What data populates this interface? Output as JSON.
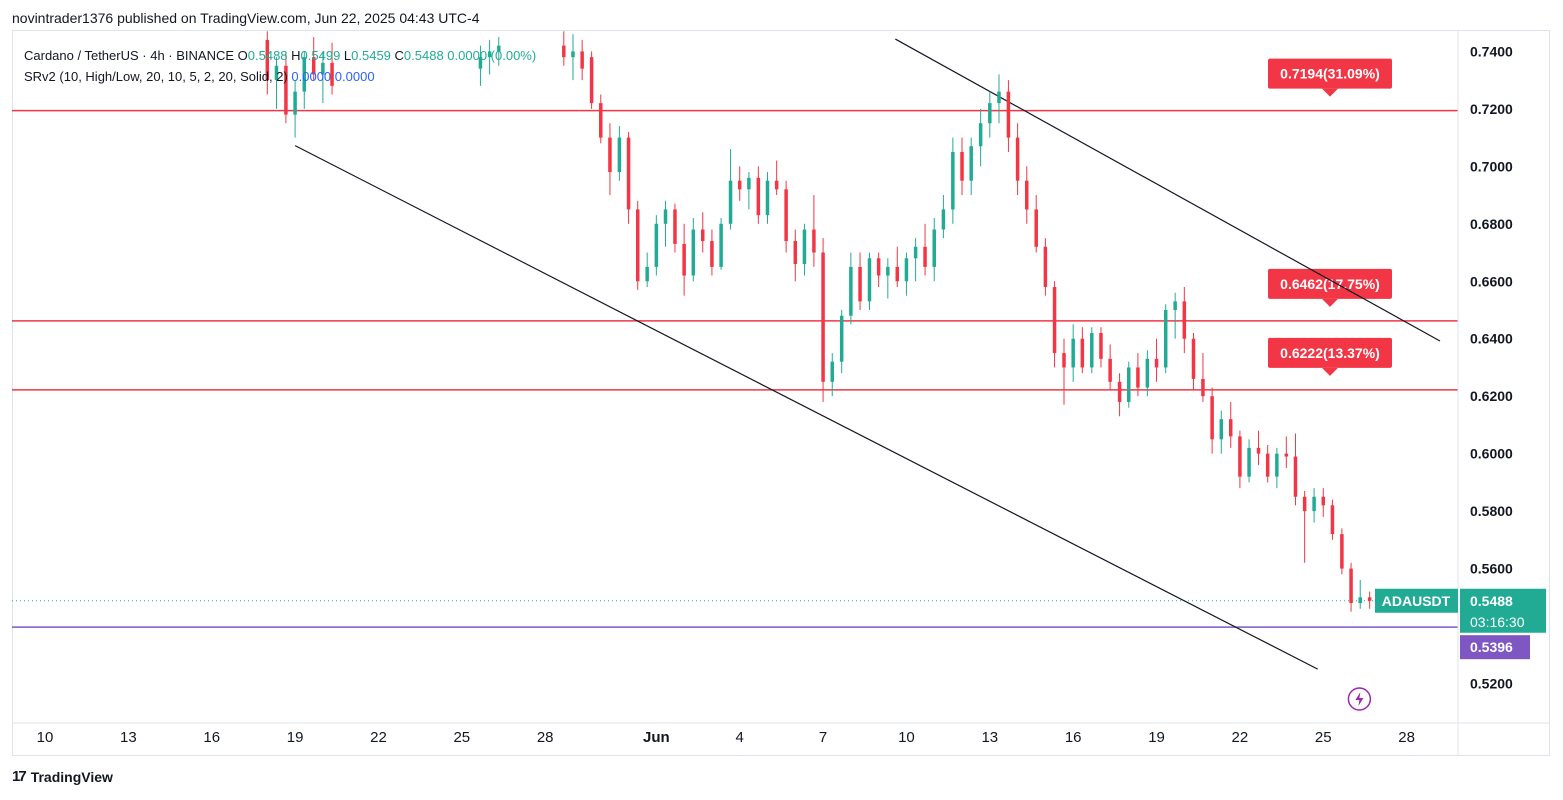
{
  "publisher_line": "novintrader1376 published on TradingView.com, Jun 22, 2025 04:43 UTC-4",
  "legend": {
    "symbol": "Cardano / TetherUS · 4h · BINANCE",
    "ohlc": [
      {
        "k": "O",
        "v": "0.5488"
      },
      {
        "k": "H",
        "v": "0.5499"
      },
      {
        "k": "L",
        "v": "0.5459"
      },
      {
        "k": "C",
        "v": "0.5488"
      }
    ],
    "change": "0.0000 (0.00%)",
    "indicator": "SRv2 (10, High/Low, 20, 10, 5, 2, 20, Solid, 2)",
    "indicator_values": [
      "0.0000",
      "0.0000"
    ]
  },
  "footer": {
    "brand": "TradingView",
    "logo_icon": "tradingview-logo-icon"
  },
  "colors": {
    "up": "#22ab94",
    "down": "#f23645",
    "sr_line": "#f23645",
    "support": "#7e57c2",
    "price_tag": "#22ab94",
    "trend": "#131722"
  },
  "chart_data": {
    "type": "candlestick",
    "symbol": "ADAUSDT",
    "interval": "4h",
    "ylim": [
      0.5066,
      0.7471
    ],
    "x_day_range": [
      0,
      52
    ],
    "y_ticks": [
      "0.7400",
      "0.7200",
      "0.7000",
      "0.6800",
      "0.6600",
      "0.6400",
      "0.6200",
      "0.6000",
      "0.5800",
      "0.5600",
      "0.5200"
    ],
    "x_ticks": [
      {
        "label": "10",
        "day": 0
      },
      {
        "label": "13",
        "day": 3
      },
      {
        "label": "16",
        "day": 6
      },
      {
        "label": "19",
        "day": 9
      },
      {
        "label": "22",
        "day": 12
      },
      {
        "label": "25",
        "day": 15
      },
      {
        "label": "28",
        "day": 18
      },
      {
        "label": "Jun",
        "day": 22
      },
      {
        "label": "4",
        "day": 25
      },
      {
        "label": "7",
        "day": 28
      },
      {
        "label": "10",
        "day": 31
      },
      {
        "label": "13",
        "day": 34
      },
      {
        "label": "16",
        "day": 37
      },
      {
        "label": "19",
        "day": 40
      },
      {
        "label": "22",
        "day": 43
      },
      {
        "label": "25",
        "day": 46
      },
      {
        "label": "28",
        "day": 49
      }
    ],
    "sr_levels": [
      {
        "price": 0.7194,
        "label": "0.7194(31.09%)"
      },
      {
        "price": 0.6462,
        "label": "0.6462(17.75%)"
      },
      {
        "price": 0.6222,
        "label": "0.6222(13.37%)"
      }
    ],
    "support_line": {
      "price": 0.5396,
      "label": "0.5396"
    },
    "last_price": {
      "price": 0.5488,
      "symbol": "ADAUSDT",
      "value": "0.5488",
      "countdown": "03:16:30"
    },
    "trendlines": [
      {
        "from": {
          "day": 30.6,
          "price": 0.7443
        },
        "to": {
          "day": 50.2,
          "price": 0.6392
        }
      },
      {
        "from": {
          "day": 9.0,
          "price": 0.7072
        },
        "to": {
          "day": 45.8,
          "price": 0.525
        }
      }
    ],
    "candles": [
      {
        "day": 8.0,
        "o": 0.744,
        "h": 0.747,
        "l": 0.725,
        "c": 0.73
      },
      {
        "day": 8.33,
        "o": 0.73,
        "h": 0.738,
        "l": 0.72,
        "c": 0.735
      },
      {
        "day": 8.67,
        "o": 0.735,
        "h": 0.74,
        "l": 0.715,
        "c": 0.718
      },
      {
        "day": 9.0,
        "o": 0.718,
        "h": 0.73,
        "l": 0.71,
        "c": 0.726
      },
      {
        "day": 9.33,
        "o": 0.726,
        "h": 0.74,
        "l": 0.72,
        "c": 0.738
      },
      {
        "day": 9.67,
        "o": 0.738,
        "h": 0.745,
        "l": 0.73,
        "c": 0.732
      },
      {
        "day": 10.0,
        "o": 0.732,
        "h": 0.74,
        "l": 0.722,
        "c": 0.736
      },
      {
        "day": 10.33,
        "o": 0.736,
        "h": 0.743,
        "l": 0.725,
        "c": 0.728
      },
      {
        "day": 15.67,
        "o": 0.734,
        "h": 0.742,
        "l": 0.728,
        "c": 0.738
      },
      {
        "day": 16.0,
        "o": 0.738,
        "h": 0.744,
        "l": 0.732,
        "c": 0.74
      },
      {
        "day": 16.33,
        "o": 0.74,
        "h": 0.745,
        "l": 0.735,
        "c": 0.742
      },
      {
        "day": 18.67,
        "o": 0.742,
        "h": 0.747,
        "l": 0.735,
        "c": 0.738
      },
      {
        "day": 19.0,
        "o": 0.738,
        "h": 0.746,
        "l": 0.73,
        "c": 0.74
      },
      {
        "day": 19.33,
        "o": 0.74,
        "h": 0.744,
        "l": 0.73,
        "c": 0.734
      },
      {
        "day": 19.67,
        "o": 0.738,
        "h": 0.74,
        "l": 0.72,
        "c": 0.722
      },
      {
        "day": 20.0,
        "o": 0.722,
        "h": 0.725,
        "l": 0.708,
        "c": 0.71
      },
      {
        "day": 20.33,
        "o": 0.71,
        "h": 0.715,
        "l": 0.69,
        "c": 0.698
      },
      {
        "day": 20.67,
        "o": 0.698,
        "h": 0.714,
        "l": 0.695,
        "c": 0.71
      },
      {
        "day": 21.0,
        "o": 0.71,
        "h": 0.712,
        "l": 0.68,
        "c": 0.685
      },
      {
        "day": 21.33,
        "o": 0.685,
        "h": 0.688,
        "l": 0.657,
        "c": 0.66
      },
      {
        "day": 21.67,
        "o": 0.66,
        "h": 0.67,
        "l": 0.658,
        "c": 0.665
      },
      {
        "day": 22.0,
        "o": 0.665,
        "h": 0.683,
        "l": 0.662,
        "c": 0.68
      },
      {
        "day": 22.33,
        "o": 0.68,
        "h": 0.688,
        "l": 0.672,
        "c": 0.685
      },
      {
        "day": 22.67,
        "o": 0.685,
        "h": 0.687,
        "l": 0.67,
        "c": 0.673
      },
      {
        "day": 23.0,
        "o": 0.673,
        "h": 0.68,
        "l": 0.655,
        "c": 0.662
      },
      {
        "day": 23.33,
        "o": 0.662,
        "h": 0.682,
        "l": 0.66,
        "c": 0.678
      },
      {
        "day": 23.67,
        "o": 0.678,
        "h": 0.684,
        "l": 0.67,
        "c": 0.674
      },
      {
        "day": 24.0,
        "o": 0.674,
        "h": 0.678,
        "l": 0.662,
        "c": 0.665
      },
      {
        "day": 24.33,
        "o": 0.665,
        "h": 0.682,
        "l": 0.664,
        "c": 0.68
      },
      {
        "day": 24.67,
        "o": 0.68,
        "h": 0.706,
        "l": 0.678,
        "c": 0.695
      },
      {
        "day": 25.0,
        "o": 0.695,
        "h": 0.7,
        "l": 0.688,
        "c": 0.692
      },
      {
        "day": 25.33,
        "o": 0.692,
        "h": 0.698,
        "l": 0.685,
        "c": 0.696
      },
      {
        "day": 25.67,
        "o": 0.696,
        "h": 0.7,
        "l": 0.68,
        "c": 0.683
      },
      {
        "day": 26.0,
        "o": 0.683,
        "h": 0.698,
        "l": 0.68,
        "c": 0.695
      },
      {
        "day": 26.33,
        "o": 0.695,
        "h": 0.702,
        "l": 0.69,
        "c": 0.692
      },
      {
        "day": 26.67,
        "o": 0.692,
        "h": 0.695,
        "l": 0.67,
        "c": 0.674
      },
      {
        "day": 27.0,
        "o": 0.674,
        "h": 0.678,
        "l": 0.66,
        "c": 0.666
      },
      {
        "day": 27.33,
        "o": 0.666,
        "h": 0.68,
        "l": 0.662,
        "c": 0.678
      },
      {
        "day": 27.67,
        "o": 0.678,
        "h": 0.69,
        "l": 0.665,
        "c": 0.67
      },
      {
        "day": 28.0,
        "o": 0.67,
        "h": 0.675,
        "l": 0.618,
        "c": 0.625
      },
      {
        "day": 28.33,
        "o": 0.625,
        "h": 0.635,
        "l": 0.62,
        "c": 0.632
      },
      {
        "day": 28.67,
        "o": 0.632,
        "h": 0.65,
        "l": 0.628,
        "c": 0.648
      },
      {
        "day": 29.0,
        "o": 0.648,
        "h": 0.67,
        "l": 0.645,
        "c": 0.665
      },
      {
        "day": 29.33,
        "o": 0.665,
        "h": 0.67,
        "l": 0.65,
        "c": 0.653
      },
      {
        "day": 29.67,
        "o": 0.653,
        "h": 0.67,
        "l": 0.65,
        "c": 0.668
      },
      {
        "day": 30.0,
        "o": 0.668,
        "h": 0.67,
        "l": 0.658,
        "c": 0.662
      },
      {
        "day": 30.33,
        "o": 0.662,
        "h": 0.668,
        "l": 0.654,
        "c": 0.665
      },
      {
        "day": 30.67,
        "o": 0.665,
        "h": 0.672,
        "l": 0.658,
        "c": 0.66
      },
      {
        "day": 31.0,
        "o": 0.66,
        "h": 0.67,
        "l": 0.655,
        "c": 0.668
      },
      {
        "day": 31.33,
        "o": 0.668,
        "h": 0.675,
        "l": 0.66,
        "c": 0.672
      },
      {
        "day": 31.67,
        "o": 0.672,
        "h": 0.68,
        "l": 0.662,
        "c": 0.665
      },
      {
        "day": 32.0,
        "o": 0.665,
        "h": 0.682,
        "l": 0.66,
        "c": 0.678
      },
      {
        "day": 32.33,
        "o": 0.678,
        "h": 0.69,
        "l": 0.675,
        "c": 0.685
      },
      {
        "day": 32.67,
        "o": 0.685,
        "h": 0.71,
        "l": 0.68,
        "c": 0.705
      },
      {
        "day": 33.0,
        "o": 0.705,
        "h": 0.71,
        "l": 0.69,
        "c": 0.695
      },
      {
        "day": 33.33,
        "o": 0.695,
        "h": 0.71,
        "l": 0.69,
        "c": 0.707
      },
      {
        "day": 33.67,
        "o": 0.707,
        "h": 0.72,
        "l": 0.7,
        "c": 0.715
      },
      {
        "day": 34.0,
        "o": 0.715,
        "h": 0.726,
        "l": 0.71,
        "c": 0.722
      },
      {
        "day": 34.33,
        "o": 0.722,
        "h": 0.732,
        "l": 0.715,
        "c": 0.726
      },
      {
        "day": 34.67,
        "o": 0.726,
        "h": 0.73,
        "l": 0.705,
        "c": 0.71
      },
      {
        "day": 35.0,
        "o": 0.71,
        "h": 0.715,
        "l": 0.69,
        "c": 0.695
      },
      {
        "day": 35.33,
        "o": 0.695,
        "h": 0.7,
        "l": 0.68,
        "c": 0.685
      },
      {
        "day": 35.67,
        "o": 0.685,
        "h": 0.69,
        "l": 0.67,
        "c": 0.672
      },
      {
        "day": 36.0,
        "o": 0.672,
        "h": 0.675,
        "l": 0.655,
        "c": 0.658
      },
      {
        "day": 36.33,
        "o": 0.658,
        "h": 0.66,
        "l": 0.63,
        "c": 0.635
      },
      {
        "day": 36.67,
        "o": 0.635,
        "h": 0.64,
        "l": 0.617,
        "c": 0.63
      },
      {
        "day": 37.0,
        "o": 0.63,
        "h": 0.645,
        "l": 0.625,
        "c": 0.64
      },
      {
        "day": 37.33,
        "o": 0.64,
        "h": 0.644,
        "l": 0.628,
        "c": 0.63
      },
      {
        "day": 37.67,
        "o": 0.63,
        "h": 0.644,
        "l": 0.628,
        "c": 0.642
      },
      {
        "day": 38.0,
        "o": 0.642,
        "h": 0.644,
        "l": 0.63,
        "c": 0.633
      },
      {
        "day": 38.33,
        "o": 0.633,
        "h": 0.638,
        "l": 0.622,
        "c": 0.625
      },
      {
        "day": 38.67,
        "o": 0.625,
        "h": 0.628,
        "l": 0.613,
        "c": 0.618
      },
      {
        "day": 39.0,
        "o": 0.618,
        "h": 0.632,
        "l": 0.616,
        "c": 0.63
      },
      {
        "day": 39.33,
        "o": 0.63,
        "h": 0.635,
        "l": 0.62,
        "c": 0.623
      },
      {
        "day": 39.67,
        "o": 0.623,
        "h": 0.636,
        "l": 0.62,
        "c": 0.633
      },
      {
        "day": 40.0,
        "o": 0.633,
        "h": 0.64,
        "l": 0.625,
        "c": 0.63
      },
      {
        "day": 40.33,
        "o": 0.63,
        "h": 0.652,
        "l": 0.628,
        "c": 0.65
      },
      {
        "day": 40.67,
        "o": 0.65,
        "h": 0.656,
        "l": 0.64,
        "c": 0.653
      },
      {
        "day": 41.0,
        "o": 0.653,
        "h": 0.658,
        "l": 0.635,
        "c": 0.64
      },
      {
        "day": 41.33,
        "o": 0.64,
        "h": 0.642,
        "l": 0.622,
        "c": 0.626
      },
      {
        "day": 41.67,
        "o": 0.626,
        "h": 0.635,
        "l": 0.618,
        "c": 0.62
      },
      {
        "day": 42.0,
        "o": 0.62,
        "h": 0.623,
        "l": 0.6,
        "c": 0.605
      },
      {
        "day": 42.33,
        "o": 0.605,
        "h": 0.615,
        "l": 0.6,
        "c": 0.612
      },
      {
        "day": 42.67,
        "o": 0.612,
        "h": 0.618,
        "l": 0.602,
        "c": 0.606
      },
      {
        "day": 43.0,
        "o": 0.606,
        "h": 0.608,
        "l": 0.588,
        "c": 0.592
      },
      {
        "day": 43.33,
        "o": 0.592,
        "h": 0.605,
        "l": 0.59,
        "c": 0.602
      },
      {
        "day": 43.67,
        "o": 0.602,
        "h": 0.608,
        "l": 0.596,
        "c": 0.6
      },
      {
        "day": 44.0,
        "o": 0.6,
        "h": 0.603,
        "l": 0.59,
        "c": 0.592
      },
      {
        "day": 44.33,
        "o": 0.592,
        "h": 0.602,
        "l": 0.588,
        "c": 0.6
      },
      {
        "day": 44.67,
        "o": 0.6,
        "h": 0.606,
        "l": 0.595,
        "c": 0.599
      },
      {
        "day": 45.0,
        "o": 0.599,
        "h": 0.607,
        "l": 0.582,
        "c": 0.585
      },
      {
        "day": 45.33,
        "o": 0.585,
        "h": 0.587,
        "l": 0.562,
        "c": 0.58
      },
      {
        "day": 45.67,
        "o": 0.58,
        "h": 0.588,
        "l": 0.576,
        "c": 0.585
      },
      {
        "day": 46.0,
        "o": 0.585,
        "h": 0.588,
        "l": 0.578,
        "c": 0.582
      },
      {
        "day": 46.33,
        "o": 0.582,
        "h": 0.584,
        "l": 0.57,
        "c": 0.572
      },
      {
        "day": 46.67,
        "o": 0.572,
        "h": 0.574,
        "l": 0.558,
        "c": 0.56
      },
      {
        "day": 47.0,
        "o": 0.56,
        "h": 0.562,
        "l": 0.545,
        "c": 0.548
      },
      {
        "day": 47.33,
        "o": 0.548,
        "h": 0.556,
        "l": 0.546,
        "c": 0.55
      },
      {
        "day": 47.67,
        "o": 0.55,
        "h": 0.552,
        "l": 0.546,
        "c": 0.5488
      }
    ]
  }
}
